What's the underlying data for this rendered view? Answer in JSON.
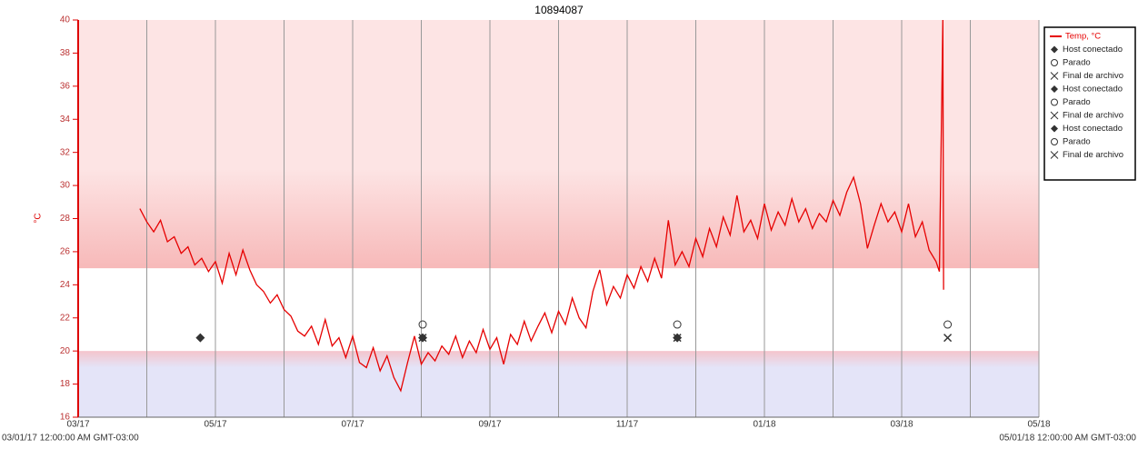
{
  "chart_data": {
    "type": "line",
    "title": "10894087",
    "y_label": "°C",
    "range_start_label": "03/01/17 12:00:00 AM GMT-03:00",
    "range_end_label": "05/01/18 12:00:00 AM GMT-03:00",
    "xlim": [
      0,
      14
    ],
    "xticks": [
      {
        "value": 0,
        "label": "03/17"
      },
      {
        "value": 2,
        "label": "05/17"
      },
      {
        "value": 4,
        "label": "07/17"
      },
      {
        "value": 6,
        "label": "09/17"
      },
      {
        "value": 8,
        "label": "11/17"
      },
      {
        "value": 10,
        "label": "01/18"
      },
      {
        "value": 12,
        "label": "03/18"
      },
      {
        "value": 14,
        "label": "05/18"
      }
    ],
    "xminor": [
      1,
      3,
      5,
      7,
      9,
      11,
      13
    ],
    "ylim": [
      16,
      40
    ],
    "yticks": [
      16,
      18,
      20,
      22,
      24,
      26,
      28,
      30,
      32,
      34,
      36,
      38,
      40
    ],
    "grid": true,
    "bands": [
      {
        "from": 25,
        "to": 40,
        "color": "#fde4e4",
        "edge": "#f7b9b9"
      },
      {
        "from": 16,
        "to": 20,
        "color": "#e4e4f8",
        "edge": "#f4c4cc"
      }
    ],
    "series": [
      {
        "name": "Temp, °C",
        "color": "#e60000",
        "marker": "line",
        "x": [
          0.9,
          1.0,
          1.1,
          1.2,
          1.3,
          1.4,
          1.5,
          1.6,
          1.7,
          1.8,
          1.9,
          2.0,
          2.1,
          2.2,
          2.3,
          2.4,
          2.5,
          2.6,
          2.7,
          2.8,
          2.9,
          3.0,
          3.1,
          3.2,
          3.3,
          3.4,
          3.5,
          3.6,
          3.7,
          3.8,
          3.9,
          4.0,
          4.1,
          4.2,
          4.3,
          4.4,
          4.5,
          4.6,
          4.7,
          4.8,
          4.9,
          5.0,
          5.1,
          5.2,
          5.3,
          5.4,
          5.5,
          5.6,
          5.7,
          5.8,
          5.9,
          6.0,
          6.1,
          6.2,
          6.3,
          6.4,
          6.5,
          6.6,
          6.7,
          6.8,
          6.9,
          7.0,
          7.1,
          7.2,
          7.3,
          7.4,
          7.5,
          7.6,
          7.7,
          7.8,
          7.9,
          8.0,
          8.1,
          8.2,
          8.3,
          8.4,
          8.5,
          8.6,
          8.7,
          8.8,
          8.9,
          9.0,
          9.1,
          9.2,
          9.3,
          9.4,
          9.5,
          9.6,
          9.7,
          9.8,
          9.9,
          10.0,
          10.1,
          10.2,
          10.3,
          10.4,
          10.5,
          10.6,
          10.7,
          10.8,
          10.9,
          11.0,
          11.1,
          11.2,
          11.3,
          11.4,
          11.5,
          11.6,
          11.7,
          11.8,
          11.9,
          12.0,
          12.1,
          12.2,
          12.3,
          12.4,
          12.5,
          12.55,
          12.6,
          12.61
        ],
        "values": [
          28.6,
          27.8,
          27.2,
          27.9,
          26.6,
          26.9,
          25.9,
          26.3,
          25.2,
          25.6,
          24.8,
          25.4,
          24.1,
          25.9,
          24.6,
          26.1,
          24.9,
          24.0,
          23.6,
          22.9,
          23.4,
          22.5,
          22.1,
          21.2,
          20.9,
          21.5,
          20.4,
          21.9,
          20.3,
          20.8,
          19.6,
          20.9,
          19.3,
          19.0,
          20.2,
          18.8,
          19.7,
          18.4,
          17.6,
          19.3,
          20.9,
          19.2,
          19.9,
          19.4,
          20.3,
          19.8,
          20.9,
          19.6,
          20.6,
          19.9,
          21.3,
          20.1,
          20.8,
          19.2,
          21.0,
          20.4,
          21.8,
          20.6,
          21.5,
          22.3,
          21.1,
          22.4,
          21.6,
          23.2,
          22.0,
          21.4,
          23.6,
          24.9,
          22.8,
          23.9,
          23.2,
          24.6,
          23.8,
          25.1,
          24.2,
          25.6,
          24.4,
          27.9,
          25.2,
          26.0,
          25.1,
          26.8,
          25.7,
          27.4,
          26.3,
          28.1,
          27.0,
          29.4,
          27.2,
          27.9,
          26.8,
          28.9,
          27.3,
          28.4,
          27.6,
          29.2,
          27.8,
          28.6,
          27.4,
          28.3,
          27.8,
          29.1,
          28.2,
          29.6,
          30.5,
          28.9,
          26.2,
          27.6,
          28.9,
          27.8,
          28.4,
          27.2,
          28.9,
          26.9,
          27.8,
          26.1,
          25.4,
          24.8,
          40,
          23.7
        ]
      },
      {
        "name": "Host conectado",
        "color": "#333333",
        "marker": "diamond",
        "x": [
          1.78
        ],
        "values": [
          20.8
        ]
      },
      {
        "name": "Parado",
        "color": "#333333",
        "marker": "circle",
        "x": [
          5.02
        ],
        "values": [
          21.6
        ]
      },
      {
        "name": "Final de archivo",
        "color": "#333333",
        "marker": "cross",
        "x": [
          5.02
        ],
        "values": [
          20.8
        ]
      },
      {
        "name": "Host conectado",
        "color": "#333333",
        "marker": "diamond",
        "x": [
          5.02
        ],
        "values": [
          20.8
        ]
      },
      {
        "name": "Parado",
        "color": "#333333",
        "marker": "circle",
        "x": [
          8.73
        ],
        "values": [
          21.6
        ]
      },
      {
        "name": "Final de archivo",
        "color": "#333333",
        "marker": "cross",
        "x": [
          8.73
        ],
        "values": [
          20.8
        ]
      },
      {
        "name": "Host conectado",
        "color": "#333333",
        "marker": "diamond",
        "x": [
          8.73
        ],
        "values": [
          20.8
        ]
      },
      {
        "name": "Parado",
        "color": "#333333",
        "marker": "circle",
        "x": [
          12.67
        ],
        "values": [
          21.6
        ]
      },
      {
        "name": "Final de archivo",
        "color": "#333333",
        "marker": "cross",
        "x": [
          12.67
        ],
        "values": [
          20.8
        ]
      }
    ]
  }
}
